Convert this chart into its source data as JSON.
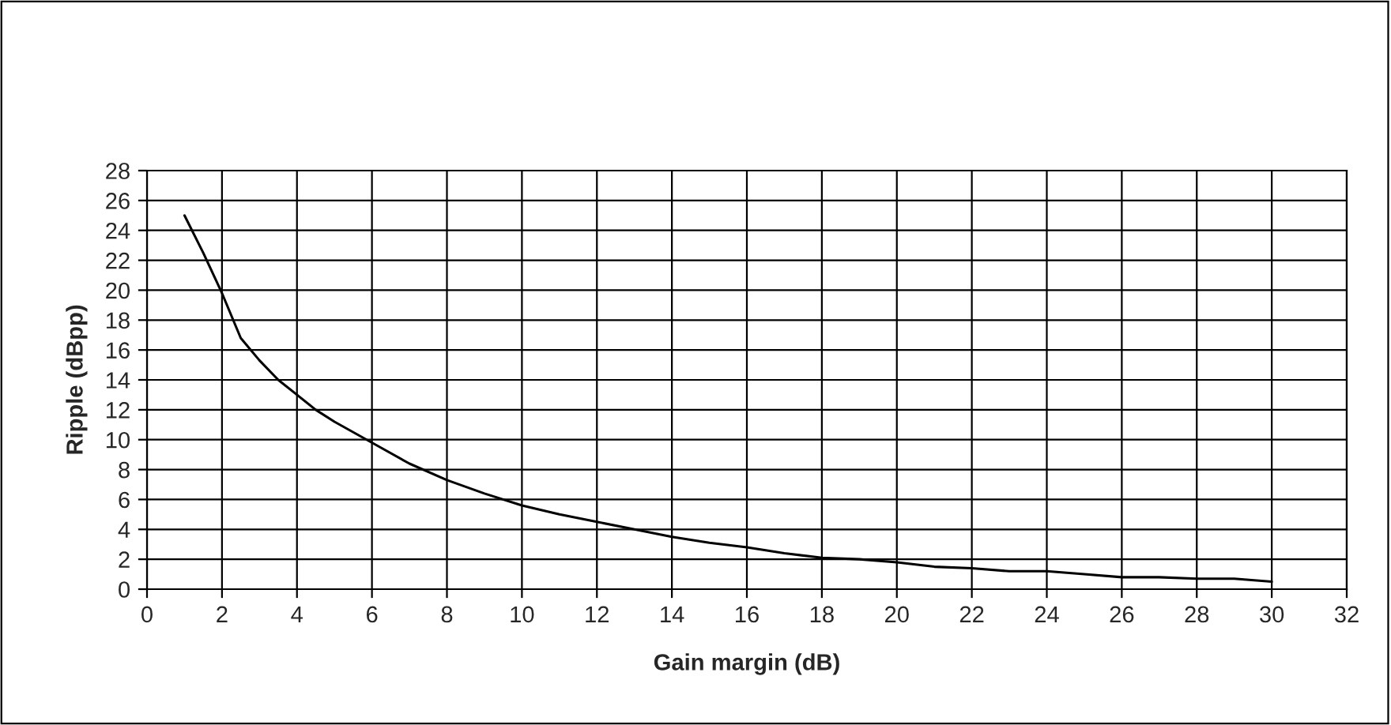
{
  "chart_data": {
    "type": "line",
    "xlabel": "Gain margin (dB)",
    "ylabel": "Ripple (dBpp)",
    "x": [
      1,
      1.5,
      2,
      2.5,
      3,
      3.5,
      4,
      4.5,
      5,
      6,
      7,
      8,
      9,
      10,
      11,
      12,
      13,
      14,
      15,
      16,
      17,
      18,
      19,
      20,
      21,
      22,
      23,
      24,
      25,
      26,
      27,
      28,
      29,
      30
    ],
    "series": [
      {
        "color": "#000000",
        "values": [
          25,
          22.5,
          19.8,
          16.8,
          15.3,
          14,
          13,
          12,
          11.2,
          9.8,
          8.4,
          7.3,
          6.4,
          5.6,
          5,
          4.5,
          4,
          3.5,
          3.1,
          2.8,
          2.4,
          2.1,
          2,
          1.8,
          1.5,
          1.4,
          1.2,
          1.2,
          1,
          0.8,
          0.8,
          0.7,
          0.7,
          0.5
        ]
      }
    ],
    "xlim": [
      0,
      32
    ],
    "xticks": [
      0,
      2,
      4,
      6,
      8,
      10,
      12,
      14,
      16,
      18,
      20,
      22,
      24,
      26,
      28,
      30,
      32
    ],
    "ylim": [
      0,
      28
    ],
    "yticks": [
      0,
      2,
      4,
      6,
      8,
      10,
      12,
      14,
      16,
      18,
      20,
      22,
      24,
      26,
      28
    ],
    "grid": true,
    "marker": "none",
    "line_style": "solid"
  }
}
